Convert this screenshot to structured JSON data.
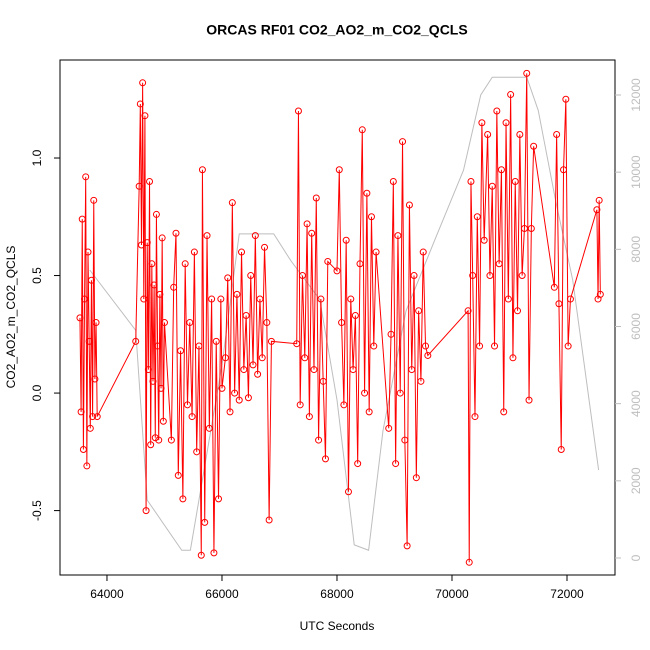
{
  "chart_data": {
    "type": "line",
    "title": "ORCAS RF01 CO2_AO2_m_CO2_QCLS",
    "x_label": "UTC Seconds",
    "y_label": "CO2_AO2_m_CO2_QCLS",
    "xlim": [
      63183,
      72835
    ],
    "xticks": [
      64000,
      66000,
      68000,
      70000,
      72000
    ],
    "ylim": [
      -0.774,
      1.417
    ],
    "yticks": [
      -0.5,
      {
        "value": 0,
        "label": "0.0"
      },
      0.5,
      {
        "value": 1,
        "label": "1.0"
      }
    ],
    "y2lim": [
      -441,
      12907
    ],
    "y2ticks": [
      0,
      2000,
      4000,
      6000,
      8000,
      10000,
      12000
    ],
    "series": [
      {
        "color": "#bebebe",
        "axis": "y2",
        "markers": false,
        "x": [
          63700,
          64500,
          64700,
          65300,
          65450,
          66000,
          66300,
          66900,
          67200,
          67700,
          68000,
          68300,
          68550,
          68800,
          69200,
          69700,
          70200,
          70500,
          70700,
          71300,
          71500,
          71800,
          72100,
          72550
        ],
        "values": [
          7464,
          5900,
          1500,
          200,
          200,
          5000,
          8400,
          8400,
          7700,
          6700,
          4100,
          340,
          200,
          3300,
          6400,
          8240,
          10050,
          12000,
          12460,
          12460,
          11600,
          9280,
          7200,
          2280
        ]
      },
      {
        "color": "#ff0000",
        "markers": true,
        "x": [
          63530,
          63550,
          63570,
          63590,
          63610,
          63630,
          63650,
          63670,
          63690,
          63710,
          63730,
          63750,
          63770,
          63790,
          63810,
          63830,
          64500,
          64560,
          64580,
          64600,
          64620,
          64640,
          64660,
          64680,
          64700,
          64720,
          64740,
          64760,
          64780,
          64800,
          64820,
          64840,
          64860,
          64880,
          64900,
          64920,
          64940,
          64960,
          64980,
          65000,
          65120,
          65160,
          65200,
          65240,
          65280,
          65320,
          65360,
          65400,
          65440,
          65480,
          65520,
          65560,
          65600,
          65640,
          65660,
          65700,
          65740,
          65780,
          65820,
          65860,
          65900,
          65940,
          65980,
          66000,
          66060,
          66100,
          66140,
          66180,
          66220,
          66260,
          66300,
          66340,
          66380,
          66420,
          66460,
          66500,
          66540,
          66580,
          66620,
          66660,
          66700,
          66740,
          66780,
          66820,
          66860,
          67300,
          67330,
          67360,
          67400,
          67440,
          67480,
          67520,
          67560,
          67600,
          67640,
          67680,
          67720,
          67760,
          67800,
          67840,
          68000,
          68040,
          68080,
          68120,
          68160,
          68200,
          68240,
          68280,
          68320,
          68360,
          68400,
          68440,
          68480,
          68520,
          68560,
          68600,
          68640,
          68680,
          68900,
          68940,
          68980,
          69020,
          69060,
          69100,
          69140,
          69180,
          69220,
          69260,
          69300,
          69340,
          69380,
          69420,
          69460,
          69500,
          69540,
          69580,
          70280,
          70300,
          70330,
          70360,
          70400,
          70440,
          70480,
          70520,
          70560,
          70620,
          70660,
          70700,
          70740,
          70780,
          70820,
          70860,
          70900,
          70940,
          70980,
          71020,
          71060,
          71100,
          71140,
          71180,
          71220,
          71260,
          71300,
          71340,
          71380,
          71420,
          71780,
          71820,
          71860,
          71900,
          71940,
          71980,
          72020,
          72060,
          72520,
          72540,
          72560,
          72580
        ],
        "values": [
          0.32,
          -0.08,
          0.74,
          -0.24,
          0.4,
          0.92,
          -0.31,
          0.6,
          0.22,
          -0.15,
          0.48,
          -0.1,
          0.82,
          0.06,
          0.3,
          -0.1,
          0.22,
          0.88,
          1.23,
          0.63,
          1.32,
          0.4,
          1.18,
          -0.5,
          0.64,
          0.1,
          0.9,
          -0.22,
          0.55,
          0.05,
          0.46,
          -0.19,
          0.76,
          0.2,
          -0.2,
          0.42,
          0.02,
          0.66,
          -0.12,
          0.3,
          -0.2,
          0.45,
          0.68,
          -0.35,
          0.18,
          -0.45,
          0.55,
          -0.05,
          0.3,
          -0.1,
          0.6,
          -0.25,
          0.2,
          -0.69,
          0.95,
          -0.55,
          0.67,
          -0.15,
          0.4,
          -0.68,
          0.22,
          -0.45,
          0.4,
          0.02,
          0.15,
          0.49,
          -0.08,
          0.81,
          0.0,
          0.42,
          -0.03,
          0.6,
          0.1,
          0.33,
          -0.02,
          0.5,
          0.12,
          0.67,
          0.08,
          0.4,
          0.15,
          0.62,
          0.3,
          -0.54,
          0.22,
          0.21,
          1.2,
          -0.05,
          0.5,
          0.15,
          0.72,
          -0.1,
          0.68,
          0.1,
          0.83,
          -0.2,
          0.4,
          0.05,
          -0.28,
          0.56,
          0.52,
          0.95,
          0.3,
          -0.05,
          0.65,
          -0.42,
          0.4,
          0.1,
          0.33,
          -0.3,
          0.55,
          1.12,
          0.0,
          0.85,
          -0.08,
          0.75,
          0.2,
          0.6,
          -0.15,
          0.25,
          0.9,
          -0.3,
          0.67,
          0.0,
          1.07,
          -0.2,
          -0.65,
          0.8,
          0.1,
          0.5,
          -0.36,
          0.35,
          0.05,
          0.6,
          0.2,
          0.16,
          0.35,
          -0.72,
          0.9,
          0.5,
          -0.1,
          0.75,
          0.2,
          1.15,
          0.65,
          1.1,
          0.5,
          0.88,
          0.2,
          1.2,
          0.55,
          0.95,
          -0.08,
          1.15,
          0.4,
          1.27,
          0.15,
          0.9,
          0.35,
          1.1,
          0.5,
          0.7,
          1.36,
          -0.03,
          0.7,
          1.05,
          0.45,
          1.1,
          0.38,
          -0.24,
          0.95,
          1.25,
          0.2,
          0.4,
          0.78,
          0.4,
          0.82,
          0.42
        ]
      }
    ]
  }
}
